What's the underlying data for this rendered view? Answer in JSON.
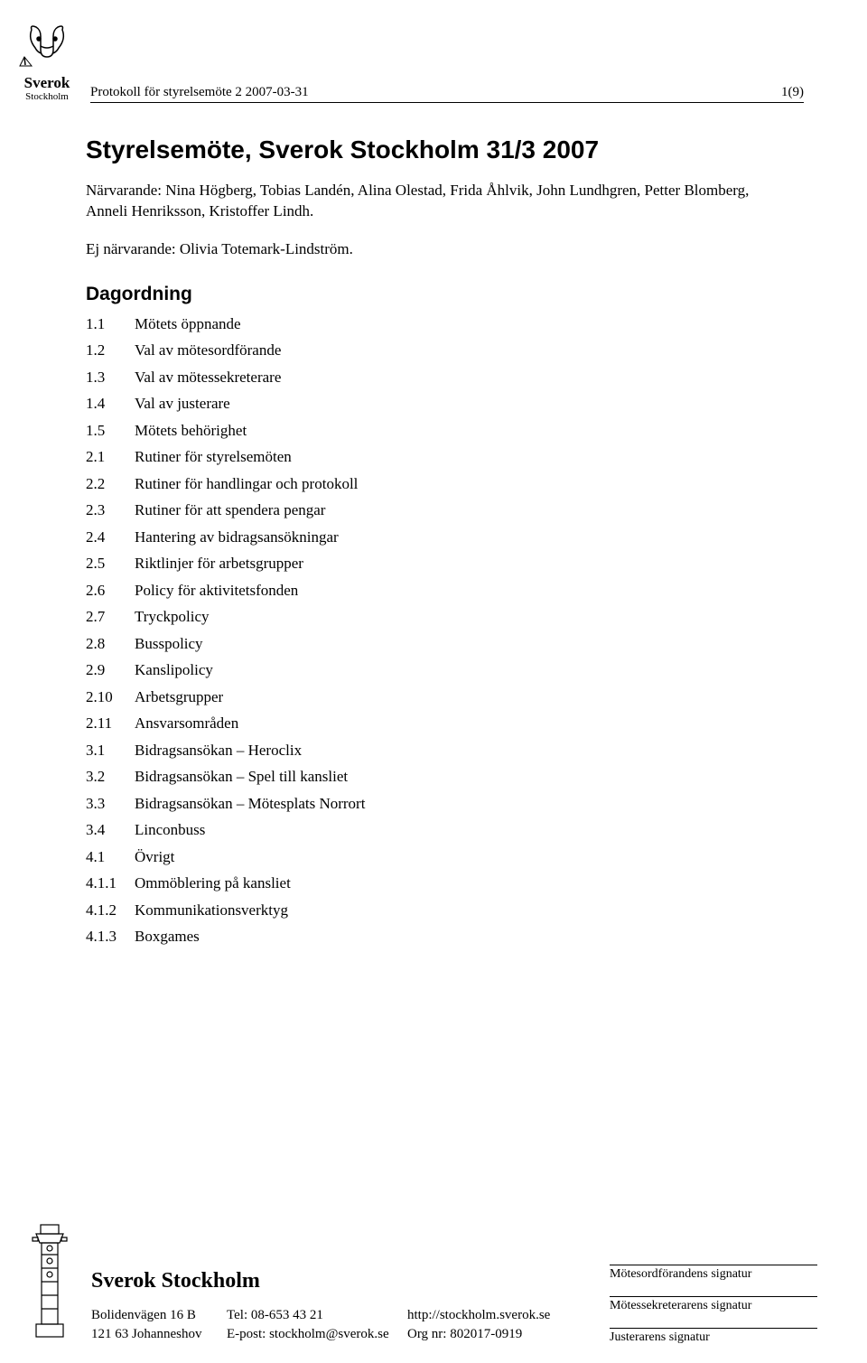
{
  "header": {
    "text": "Protokoll för styrelsemöte 2 2007-03-31",
    "page": "1(9)"
  },
  "title": "Styrelsemöte, Sverok Stockholm 31/3 2007",
  "attendees": "Närvarande: Nina Högberg, Tobias Landén, Alina Olestad, Frida Åhlvik, John Lundhgren, Petter Blomberg, Anneli Henriksson, Kristoffer Lindh.",
  "absent": "Ej närvarande: Olivia Totemark-Lindström.",
  "agenda_heading": "Dagordning",
  "agenda": [
    {
      "n": "1.1",
      "t": "Mötets öppnande"
    },
    {
      "n": "1.2",
      "t": "Val av mötesordförande"
    },
    {
      "n": "1.3",
      "t": "Val av mötessekreterare"
    },
    {
      "n": "1.4",
      "t": "Val av justerare"
    },
    {
      "n": "1.5",
      "t": "Mötets behörighet"
    },
    {
      "n": "2.1",
      "t": "Rutiner för styrelsemöten"
    },
    {
      "n": "2.2",
      "t": "Rutiner för handlingar och protokoll"
    },
    {
      "n": "2.3",
      "t": "Rutiner för att spendera pengar"
    },
    {
      "n": "2.4",
      "t": "Hantering av bidragsansökningar"
    },
    {
      "n": "2.5",
      "t": "Riktlinjer för arbetsgrupper"
    },
    {
      "n": "2.6",
      "t": "Policy för aktivitetsfonden"
    },
    {
      "n": "2.7",
      "t": "Tryckpolicy"
    },
    {
      "n": "2.8",
      "t": "Busspolicy"
    },
    {
      "n": "2.9",
      "t": "Kanslipolicy"
    },
    {
      "n": "2.10",
      "t": "Arbetsgrupper"
    },
    {
      "n": "2.11",
      "t": "Ansvarsområden"
    },
    {
      "n": "3.1",
      "t": "Bidragsansökan – Heroclix"
    },
    {
      "n": "3.2",
      "t": "Bidragsansökan – Spel till kansliet"
    },
    {
      "n": "3.3",
      "t": "Bidragsansökan – Mötesplats Norrort"
    },
    {
      "n": "3.4",
      "t": "Linconbuss"
    },
    {
      "n": "4.1",
      "t": "Övrigt"
    },
    {
      "n": "4.1.1",
      "t": "Ommöblering på kansliet"
    },
    {
      "n": "4.1.2",
      "t": "Kommunikationsverktyg"
    },
    {
      "n": "4.1.3",
      "t": "Boxgames"
    }
  ],
  "footer": {
    "org": "Sverok Stockholm",
    "addr1": "Bolidenvägen 16 B",
    "addr2": "121 63 Johanneshov",
    "tel": "Tel: 08-653 43 21",
    "email": "E-post: stockholm@sverok.se",
    "url": "http://stockholm.sverok.se",
    "orgnr": "Org nr: 802017-0919",
    "sig1": "Mötesordförandens signatur",
    "sig2": "Mötessekreterarens signatur",
    "sig3": "Justerarens signatur"
  }
}
